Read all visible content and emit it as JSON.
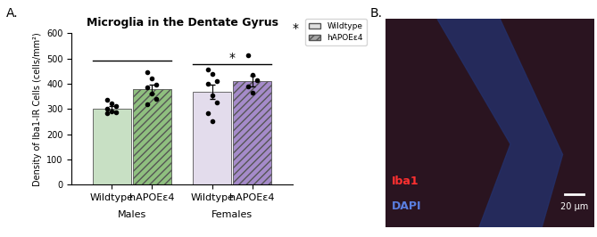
{
  "chart_data": {
    "type": "bar",
    "panel_label": "A.",
    "title": "Microglia in the Dentate Gyrus",
    "y_label": "Density of Iba1-IR Cells (cells/mm²)",
    "categories": [
      "Males",
      "Females"
    ],
    "series": [
      {
        "name": "Wildtype",
        "color": "#e0e0e0",
        "colors": [
          "#c8e0c4",
          "#e3dcec"
        ],
        "values": [
          303,
          367
        ],
        "errors": [
          9,
          28
        ],
        "points": [
          [
            338,
            322,
            312,
            300,
            292,
            287,
            283
          ],
          [
            455,
            440,
            410,
            400,
            355,
            325,
            285,
            252
          ]
        ]
      },
      {
        "name": "hAPOEε4",
        "color": "#a6a6a6",
        "colors": [
          "#8fbf7f",
          "#a58bc9"
        ],
        "values": [
          380,
          410
        ],
        "errors": [
          18,
          22
        ],
        "points": [
          [
            447,
            420,
            395,
            385,
            360,
            340,
            318
          ],
          [
            512,
            435,
            415,
            390,
            365
          ]
        ]
      }
    ],
    "ylim": [
      0,
      600
    ],
    "yticks": [
      0,
      100,
      200,
      300,
      400,
      500,
      600
    ],
    "legend": "upper left",
    "legend_note": "*",
    "significance": [
      {
        "category": "Males",
        "y": 492
      },
      {
        "category": "Females",
        "y": 478,
        "label": "*"
      }
    ]
  },
  "image_panel": {
    "panel_label": "B.",
    "channels": [
      {
        "name": "Iba1",
        "color": "#ff3030"
      },
      {
        "name": "DAPI",
        "color": "#5a7fe0"
      }
    ],
    "scale_bar": "20 µm"
  }
}
